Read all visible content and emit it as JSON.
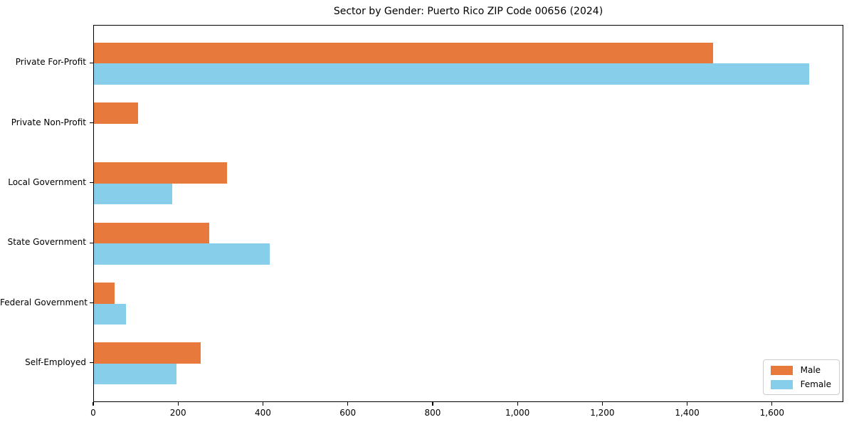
{
  "chart_data": {
    "type": "bar",
    "orientation": "horizontal",
    "title": "Sector by Gender: Puerto Rico ZIP Code 00656 (2024)",
    "categories": [
      "Private For-Profit",
      "Private Non-Profit",
      "Local Government",
      "State Government",
      "Federal Government",
      "Self-Employed"
    ],
    "series": [
      {
        "name": "Male",
        "color": "#E8793D",
        "values": [
          1460,
          104,
          313,
          271,
          48,
          252
        ]
      },
      {
        "name": "Female",
        "color": "#87CEEB",
        "values": [
          1685,
          0,
          184,
          415,
          76,
          195
        ]
      }
    ],
    "xlabel": "",
    "ylabel": "",
    "xlim": [
      0,
      1768
    ],
    "xticks": [
      0,
      200,
      400,
      600,
      800,
      1000,
      1200,
      1400,
      1600
    ],
    "xtick_labels": [
      "0",
      "200",
      "400",
      "600",
      "800",
      "1,000",
      "1,200",
      "1,400",
      "1,600"
    ],
    "grid": false,
    "legend": {
      "position": "lower right",
      "entries": [
        "Male",
        "Female"
      ]
    },
    "colors": {
      "male": "#E8793D",
      "female": "#87CEEB",
      "spine": "#000000",
      "background": "#ffffff"
    }
  }
}
